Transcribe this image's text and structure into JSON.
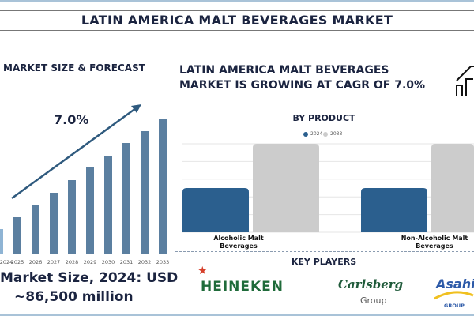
{
  "title": "LATIN AMERICA MALT BEVERAGES MARKET",
  "left_panel": {
    "heading": "MARKET SIZE & FORECAST",
    "cagr_label": "7.0%",
    "size_line1": "Market Size, 2024: USD",
    "size_line2": "~86,500 million"
  },
  "headline": {
    "line1": "LATIN AMERICA MALT BEVERAGES",
    "line2": "MARKET IS GROWING AT CAGR OF 7.0%",
    "icon": "growth-chart-icon"
  },
  "key_players": {
    "heading": "KEY PLAYERS",
    "logos": [
      "HEINEKEN",
      "Carlsberg Group",
      "Asahi GROUP"
    ]
  },
  "chart_data": [
    {
      "type": "bar",
      "title": "MARKET SIZE & FORECAST",
      "categories": [
        "2024",
        "2025",
        "2026",
        "2027",
        "2028",
        "2029",
        "2030",
        "2031",
        "2032",
        "2033"
      ],
      "values": [
        31,
        46,
        62,
        77,
        93,
        109,
        124,
        140,
        155,
        171
      ],
      "annotation": "7.0%",
      "color": "#5b7fa0",
      "grid": false
    },
    {
      "type": "bar",
      "title": "BY PRODUCT",
      "categories": [
        "Alcoholic Malt Beverages",
        "Non-Alcoholic Malt Beverages"
      ],
      "category_lines": [
        [
          "Alcoholic Malt",
          "Beverages"
        ],
        [
          "Non-Alcoholic Malt",
          "Beverages"
        ]
      ],
      "series": [
        {
          "name": "2024",
          "values": [
            2.5,
            2.5
          ],
          "color": "#2b5f8e"
        },
        {
          "name": "2033",
          "values": [
            5,
            5
          ],
          "color": "#cccccc"
        }
      ],
      "ylim": [
        0,
        5
      ],
      "grid": true,
      "legend": "top-center"
    }
  ]
}
